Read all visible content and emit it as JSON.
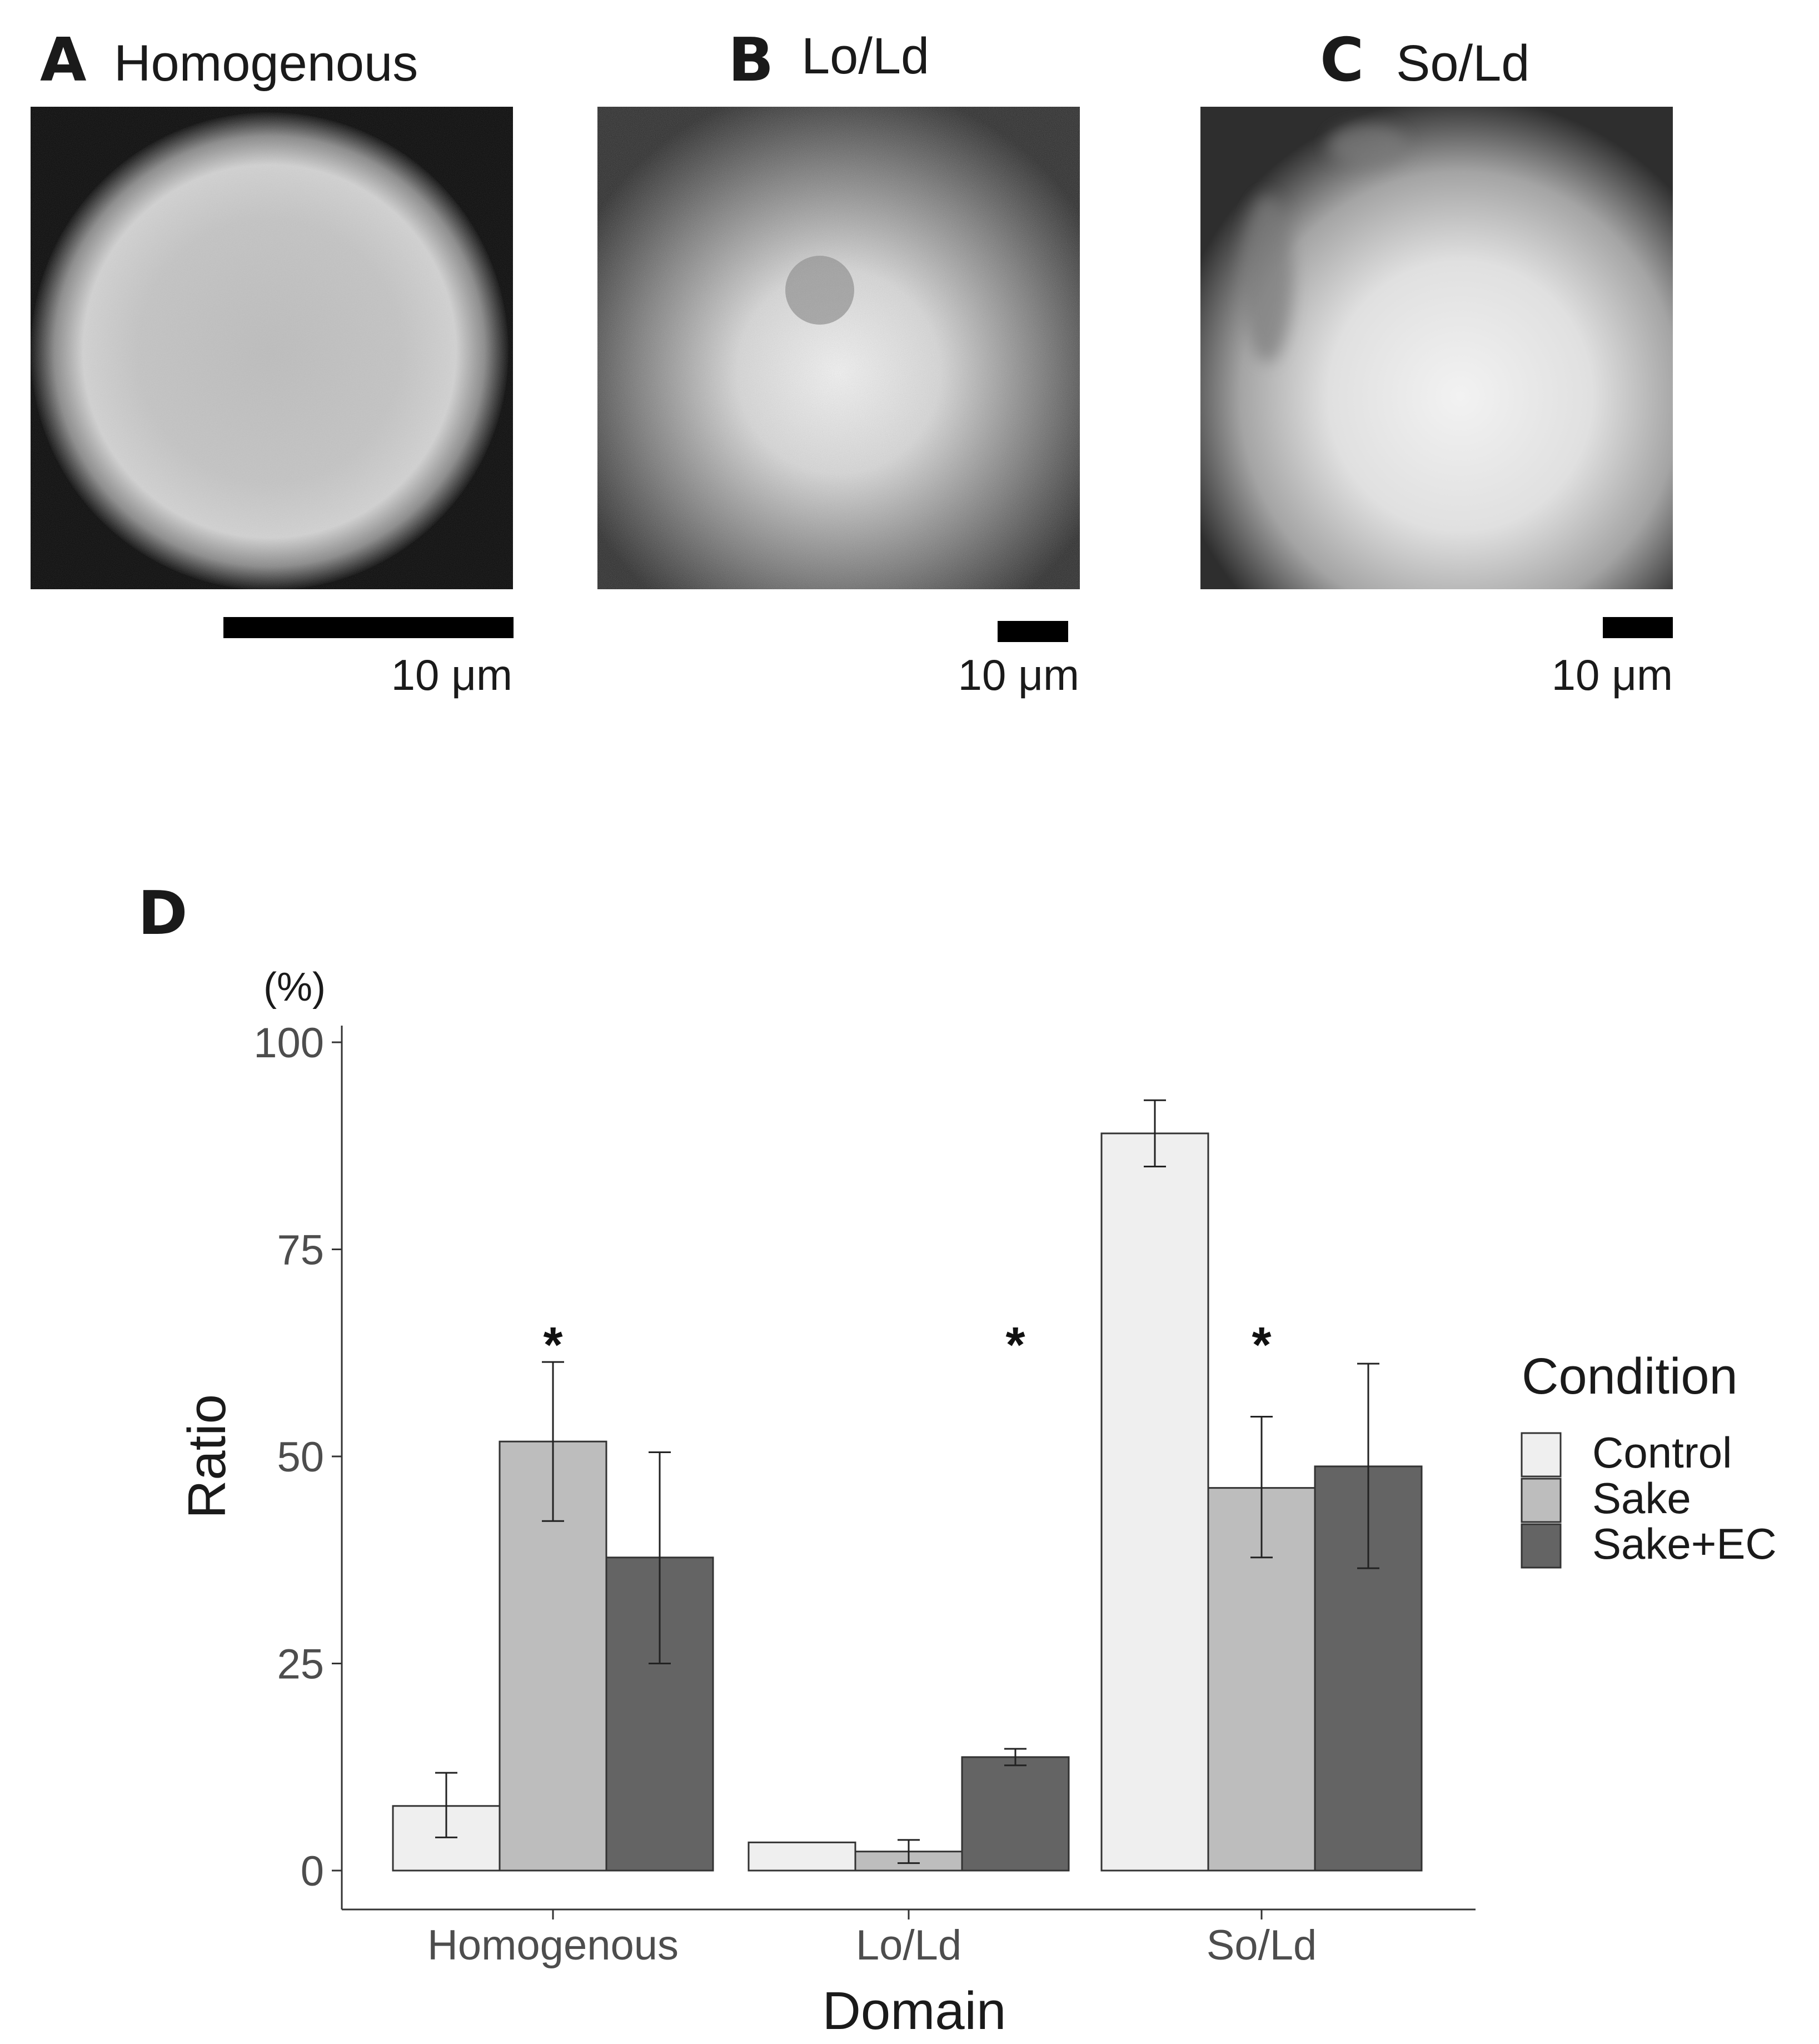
{
  "panels": [
    {
      "letter": "A",
      "title": "Homogenous",
      "scale_label": "10 μm"
    },
    {
      "letter": "B",
      "title": "Lo/Ld",
      "scale_label": "10 μm"
    },
    {
      "letter": "C",
      "title": "So/Ld",
      "scale_label": "10 μm"
    }
  ],
  "chart_letter": "D",
  "chart_data": {
    "type": "bar",
    "categories": [
      "Homogenous",
      "Lo/Ld",
      "So/Ld"
    ],
    "series": [
      {
        "name": "Control",
        "color": "#efefef",
        "values": [
          7.8,
          3.4,
          89.0
        ],
        "err_low": [
          4.0,
          3.4,
          85.0
        ],
        "err_high": [
          11.8,
          3.4,
          93.0
        ]
      },
      {
        "name": "Sake",
        "color": "#bdbdbd",
        "values": [
          51.8,
          2.3,
          46.2
        ],
        "err_low": [
          42.2,
          0.9,
          37.8
        ],
        "err_high": [
          61.4,
          3.7,
          54.8
        ]
      },
      {
        "name": "Sake+EC",
        "color": "#646464",
        "values": [
          37.8,
          13.7,
          48.8
        ],
        "err_low": [
          25.0,
          12.7,
          36.5
        ],
        "err_high": [
          50.5,
          14.7,
          61.2
        ]
      }
    ],
    "significance": [
      {
        "category": "Homogenous",
        "series": "Sake",
        "label": "*"
      },
      {
        "category": "Lo/Ld",
        "series": "Sake+EC",
        "label": "*"
      },
      {
        "category": "So/Ld",
        "series": "Sake",
        "label": "*"
      }
    ],
    "xlabel": "Domain",
    "ylabel": "Ratio",
    "yunit": "(%)",
    "ylim": [
      0,
      100
    ],
    "yticks": [
      0,
      25,
      50,
      75,
      100
    ],
    "grid": false,
    "legend": {
      "title": "Condition",
      "position": "right"
    }
  }
}
